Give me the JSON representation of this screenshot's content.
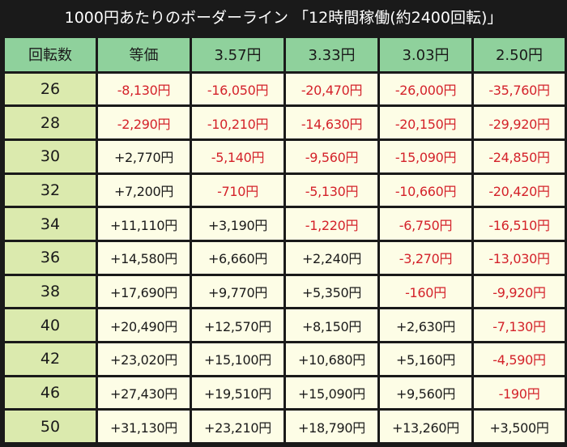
{
  "title": "1000円あたりのボーダーライン 「12時間稼働(約2400回転)」",
  "header": [
    "回転数",
    "等価",
    "3.57円",
    "3.33円",
    "3.03円",
    "2.50円"
  ],
  "rows": [
    {
      "rot": "26",
      "vals": [
        "-8,130円",
        "-16,050円",
        "-20,470円",
        "-26,000円",
        "-35,760円"
      ]
    },
    {
      "rot": "28",
      "vals": [
        "-2,290円",
        "-10,210円",
        "-14,630円",
        "-20,150円",
        "-29,920円"
      ]
    },
    {
      "rot": "30",
      "vals": [
        "+2,770円",
        "-5,140円",
        "-9,560円",
        "-15,090円",
        "-24,850円"
      ]
    },
    {
      "rot": "32",
      "vals": [
        "+7,200円",
        "-710円",
        "-5,130円",
        "-10,660円",
        "-20,420円"
      ]
    },
    {
      "rot": "34",
      "vals": [
        "+11,110円",
        "+3,190円",
        "-1,220円",
        "-6,750円",
        "-16,510円"
      ]
    },
    {
      "rot": "36",
      "vals": [
        "+14,580円",
        "+6,660円",
        "+2,240円",
        "-3,270円",
        "-13,030円"
      ]
    },
    {
      "rot": "38",
      "vals": [
        "+17,690円",
        "+9,770円",
        "+5,350円",
        "-160円",
        "-9,920円"
      ]
    },
    {
      "rot": "40",
      "vals": [
        "+20,490円",
        "+12,570円",
        "+8,150円",
        "+2,630円",
        "-7,130円"
      ]
    },
    {
      "rot": "42",
      "vals": [
        "+23,020円",
        "+15,100円",
        "+10,680円",
        "+5,160円",
        "-4,590円"
      ]
    },
    {
      "rot": "46",
      "vals": [
        "+27,430円",
        "+19,510円",
        "+15,090円",
        "+9,560円",
        "-190円"
      ]
    },
    {
      "rot": "50",
      "vals": [
        "+31,130円",
        "+23,210円",
        "+18,790円",
        "+13,260円",
        "+3,500円"
      ]
    }
  ],
  "colors": {
    "background": "#1a1a1a",
    "header_bg": "#8fd19c",
    "rotation_col_bg": "#dbeaae",
    "cell_bg": "#fdfde6",
    "negative_text": "#d4222a",
    "positive_text": "#1a1a1a"
  }
}
